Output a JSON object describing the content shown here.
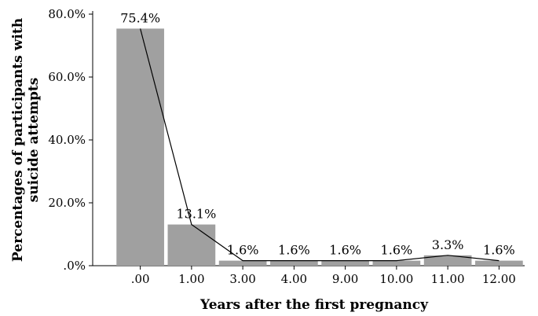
{
  "chart_data": {
    "type": "bar",
    "categories": [
      ".00",
      "1.00",
      "3.00",
      "4.00",
      "9.00",
      "10.00",
      "11.00",
      "12.00"
    ],
    "values": [
      75.4,
      13.1,
      1.6,
      1.6,
      1.6,
      1.6,
      3.3,
      1.6
    ],
    "data_labels": [
      "75.4%",
      "13.1%",
      "1.6%",
      "1.6%",
      "1.6%",
      "1.6%",
      "3.3%",
      "1.6%"
    ],
    "overlay_line": true,
    "xlabel": "Years after the first pregnancy",
    "ylabel_lines": [
      "Percentages of participants with",
      "suicide attempts"
    ],
    "ylim": [
      0,
      80
    ],
    "yticks": [
      0,
      20,
      40,
      60,
      80
    ],
    "ytick_labels": [
      ".0%",
      "20.0%",
      "40.0%",
      "60.0%",
      "80.0%"
    ],
    "grid": false,
    "legend": "none",
    "colors": {
      "bar": "#a0a0a0",
      "line": "#000000"
    }
  }
}
